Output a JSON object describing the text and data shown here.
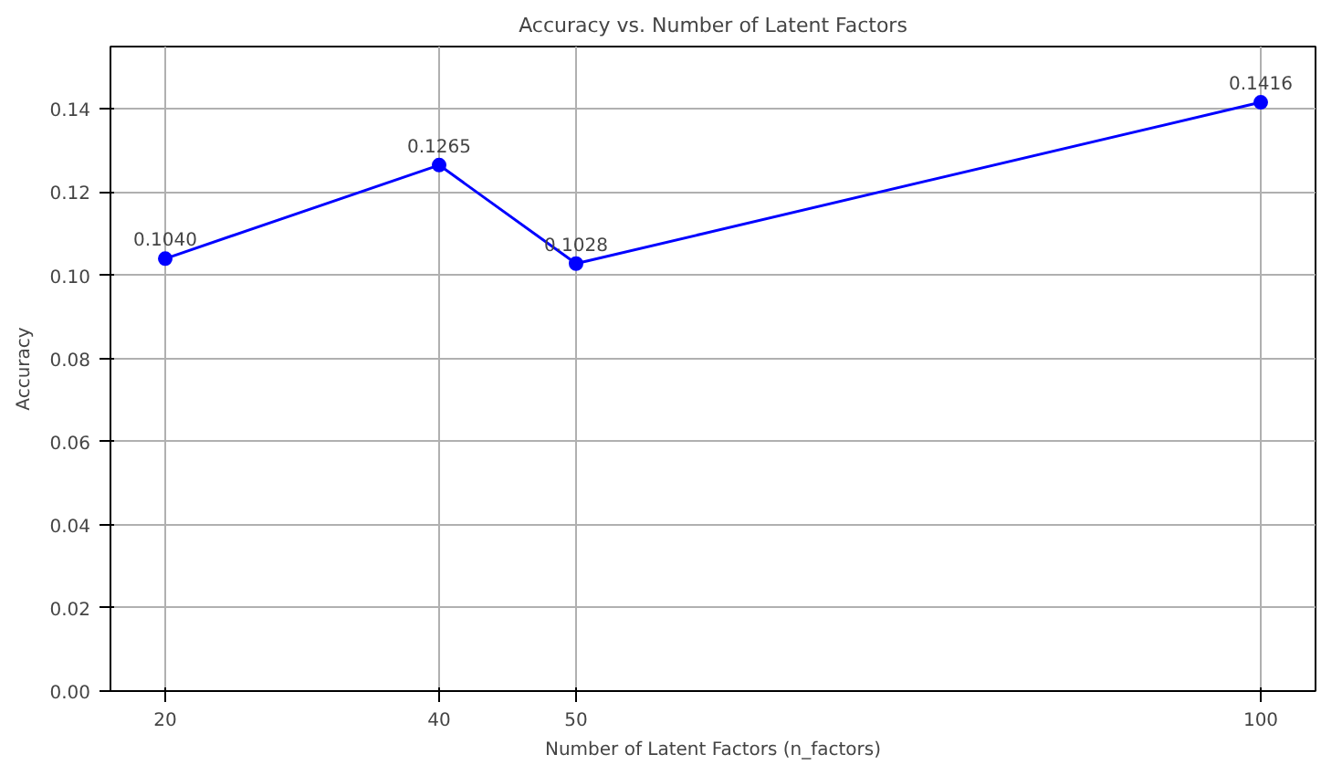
{
  "chart_data": {
    "type": "line",
    "title": "Accuracy vs. Number of Latent Factors",
    "xlabel": "Number of Latent Factors (n_factors)",
    "ylabel": "Accuracy",
    "x": [
      20,
      40,
      50,
      100
    ],
    "series": [
      {
        "color": "#0000ff",
        "values": [
          0.104,
          0.1265,
          0.1028,
          0.1416
        ],
        "value_labels": [
          "0.1040",
          "0.1265",
          "0.1028",
          "0.1416"
        ]
      }
    ],
    "xlim": [
      16,
      104
    ],
    "xticks": [
      20,
      40,
      50,
      100
    ],
    "ylim": [
      0,
      0.155
    ],
    "yticks": [
      {
        "value": 0,
        "label": "0.00"
      },
      0.02,
      0.04,
      0.06,
      0.08,
      {
        "value": 0.1,
        "label": "0.10"
      },
      0.12,
      0.14
    ],
    "grid": true,
    "marker": "circle",
    "line_style": "solid"
  }
}
